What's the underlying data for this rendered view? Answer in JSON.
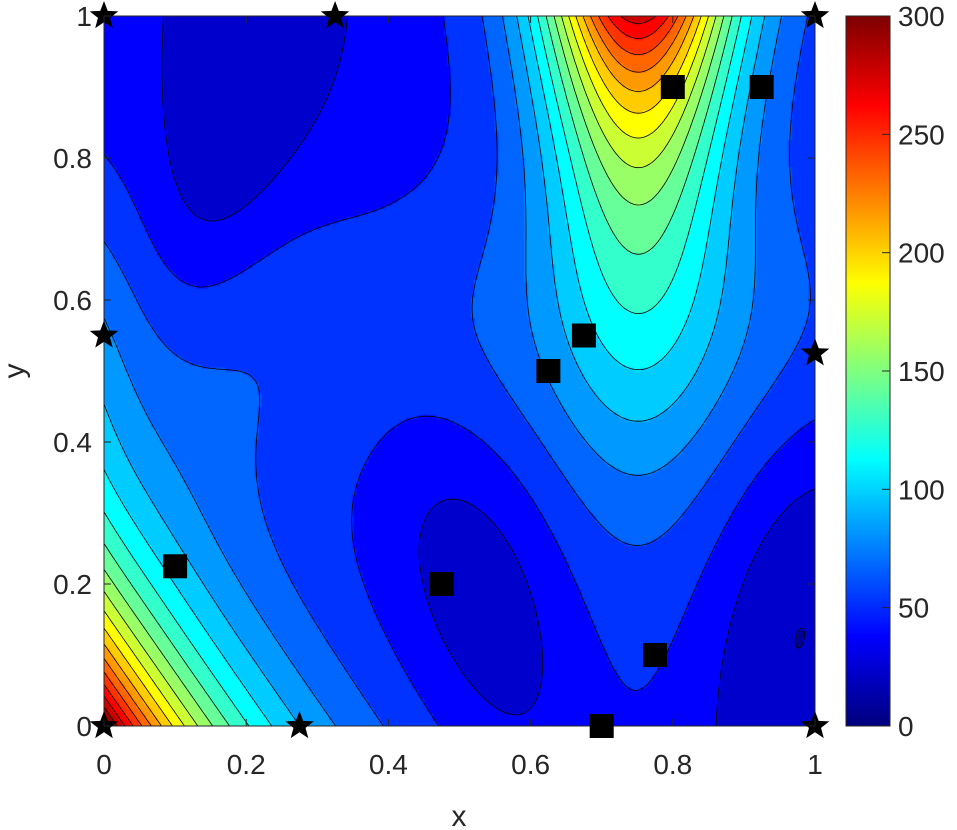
{
  "chart_data": {
    "type": "contour",
    "title": "",
    "xlabel": "x",
    "ylabel": "y",
    "xlim": [
      0,
      1
    ],
    "ylim": [
      0,
      1
    ],
    "xticks": [
      "0",
      "0.2",
      "0.4",
      "0.6",
      "0.8",
      "1"
    ],
    "xtick_values": [
      0,
      0.2,
      0.4,
      0.6,
      0.8,
      1
    ],
    "yticks": [
      "0",
      "0.2",
      "0.4",
      "0.6",
      "0.8",
      "1"
    ],
    "ytick_values": [
      0,
      0.2,
      0.4,
      0.6,
      0.8,
      1
    ],
    "colorbar": {
      "colormap": "jet",
      "range": [
        0,
        300
      ],
      "ticks": [
        "0",
        "50",
        "100",
        "150",
        "200",
        "250",
        "300"
      ],
      "tick_values": [
        0,
        50,
        100,
        150,
        200,
        250,
        300
      ]
    },
    "contour_level_step": 15,
    "field_features": [
      {
        "location": [
          0,
          0
        ],
        "value": 290,
        "description": "maximum at lower-left corner"
      },
      {
        "location": [
          0.75,
          1
        ],
        "value": 215,
        "description": "high region at top center-right"
      },
      {
        "location": [
          0.15,
          0.8
        ],
        "value": 5,
        "description": "low trough upper-left"
      },
      {
        "location": [
          0.53,
          0.2
        ],
        "value": 8,
        "description": "low basin lower-center"
      },
      {
        "location": [
          0.95,
          0.15
        ],
        "value": 8,
        "description": "low basin lower-right"
      }
    ],
    "series": [
      {
        "name": "",
        "marker": "square",
        "color": "#000000",
        "points": [
          {
            "x": 0.1,
            "y": 0.225
          },
          {
            "x": 0.475,
            "y": 0.2
          },
          {
            "x": 0.625,
            "y": 0.5
          },
          {
            "x": 0.675,
            "y": 0.55
          },
          {
            "x": 0.775,
            "y": 0.1
          },
          {
            "x": 0.7,
            "y": 0.0
          },
          {
            "x": 0.8,
            "y": 0.9
          },
          {
            "x": 0.925,
            "y": 0.9
          }
        ]
      },
      {
        "name": "",
        "marker": "star",
        "color": "#000000",
        "points": [
          {
            "x": 0.0,
            "y": 1.0
          },
          {
            "x": 0.325,
            "y": 1.0
          },
          {
            "x": 1.0,
            "y": 1.0
          },
          {
            "x": 0.0,
            "y": 0.55
          },
          {
            "x": 1.0,
            "y": 0.525
          },
          {
            "x": 0.0,
            "y": 0.0
          },
          {
            "x": 0.275,
            "y": 0.0
          },
          {
            "x": 1.0,
            "y": 0.0
          }
        ]
      }
    ]
  }
}
